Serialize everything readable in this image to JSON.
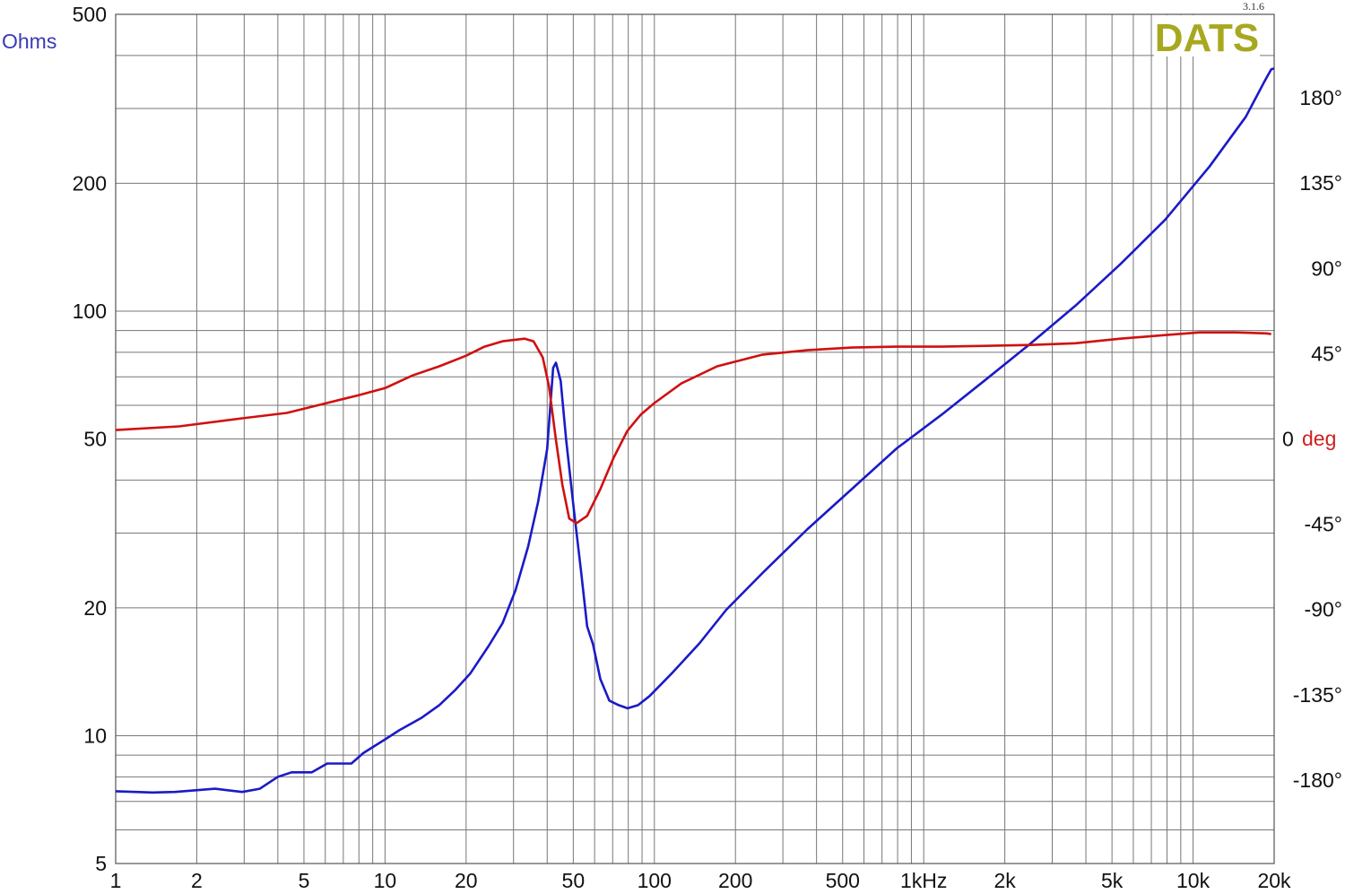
{
  "chart_data": {
    "type": "line",
    "title": "",
    "version": "3.1.6",
    "logo": "DATS",
    "x_scale": "log",
    "xlim": [
      1,
      20000
    ],
    "x_ticks": [
      {
        "value": 1,
        "label": "1"
      },
      {
        "value": 2,
        "label": "2"
      },
      {
        "value": 5,
        "label": "5"
      },
      {
        "value": 10,
        "label": "10"
      },
      {
        "value": 20,
        "label": "20"
      },
      {
        "value": 50,
        "label": "50"
      },
      {
        "value": 100,
        "label": "100"
      },
      {
        "value": 200,
        "label": "200"
      },
      {
        "value": 500,
        "label": "500"
      },
      {
        "value": 1000,
        "label": "1kHz"
      },
      {
        "value": 2000,
        "label": "2k"
      },
      {
        "value": 5000,
        "label": "5k"
      },
      {
        "value": 10000,
        "label": "10k"
      },
      {
        "value": 20000,
        "label": "20k"
      }
    ],
    "y_left": {
      "label": "Ohms",
      "scale": "log",
      "ylim": [
        5,
        500
      ],
      "ticks": [
        {
          "value": 500,
          "label": "500"
        },
        {
          "value": 200,
          "label": "200"
        },
        {
          "value": 100,
          "label": "100"
        },
        {
          "value": 50,
          "label": "50"
        },
        {
          "value": 20,
          "label": "20"
        },
        {
          "value": 10,
          "label": "10"
        },
        {
          "value": 5,
          "label": "5"
        }
      ]
    },
    "y_right": {
      "label": "deg",
      "scale": "linear",
      "ylim": [
        -224,
        224
      ],
      "ticks": [
        {
          "value": 180,
          "label": "180°"
        },
        {
          "value": 135,
          "label": "135°"
        },
        {
          "value": 90,
          "label": "90°"
        },
        {
          "value": 45,
          "label": "45°"
        },
        {
          "value": 0,
          "label": "0"
        },
        {
          "value": -45,
          "label": "-45°"
        },
        {
          "value": -90,
          "label": "-90°"
        },
        {
          "value": -135,
          "label": "-135°"
        },
        {
          "value": -180,
          "label": "-180°"
        }
      ]
    },
    "grid": true,
    "colors": {
      "impedance": "#1a1ac8",
      "phase": "#d01010",
      "grid": "#777777",
      "logo": "#a8a820",
      "ohms_label": "#3a3ab8",
      "deg_label": "#d02020"
    },
    "series": [
      {
        "axis": "left",
        "color": "#1a1ac8",
        "points": [
          [
            1,
            7.4
          ],
          [
            1.37,
            7.35
          ],
          [
            1.66,
            7.37
          ],
          [
            2.34,
            7.5
          ],
          [
            2.95,
            7.37
          ],
          [
            3.43,
            7.5
          ],
          [
            4.0,
            8.0
          ],
          [
            4.5,
            8.2
          ],
          [
            5.35,
            8.2
          ],
          [
            6.1,
            8.6
          ],
          [
            6.8,
            8.6
          ],
          [
            7.5,
            8.6
          ],
          [
            8.3,
            9.1
          ],
          [
            10,
            9.8
          ],
          [
            11.3,
            10.3
          ],
          [
            13.6,
            11
          ],
          [
            15.9,
            11.8
          ],
          [
            18.2,
            12.8
          ],
          [
            20.7,
            14
          ],
          [
            24.3,
            16.3
          ],
          [
            27.3,
            18.4
          ],
          [
            30.5,
            22
          ],
          [
            34,
            27.9
          ],
          [
            37,
            35.5
          ],
          [
            40,
            47.3
          ],
          [
            42.1,
            73.5
          ],
          [
            43.1,
            75.6
          ],
          [
            44.9,
            68.5
          ],
          [
            47,
            50
          ],
          [
            50.3,
            33.9
          ],
          [
            53.5,
            24.2
          ],
          [
            56.3,
            18.1
          ],
          [
            59.2,
            16.4
          ],
          [
            63,
            13.6
          ],
          [
            68,
            12.1
          ],
          [
            73.7,
            11.8
          ],
          [
            79.5,
            11.6
          ],
          [
            87,
            11.8
          ],
          [
            96,
            12.4
          ],
          [
            117,
            14.1
          ],
          [
            147,
            16.5
          ],
          [
            185,
            19.8
          ],
          [
            251,
            24.1
          ],
          [
            369,
            30.6
          ],
          [
            541,
            38.1
          ],
          [
            794,
            47.5
          ],
          [
            1164,
            57
          ],
          [
            1700,
            69
          ],
          [
            2500,
            84
          ],
          [
            3660,
            103
          ],
          [
            5370,
            129
          ],
          [
            7870,
            164
          ],
          [
            11500,
            219
          ],
          [
            15700,
            287
          ],
          [
            18300,
            345
          ],
          [
            19500,
            371
          ],
          [
            20000,
            373
          ]
        ]
      },
      {
        "axis": "right",
        "color": "#d01010",
        "points": [
          [
            1,
            4.7
          ],
          [
            1.72,
            6.6
          ],
          [
            2.95,
            10.9
          ],
          [
            4.32,
            13.7
          ],
          [
            5.87,
            18.4
          ],
          [
            7.98,
            23.1
          ],
          [
            10.05,
            26.9
          ],
          [
            12.65,
            33.5
          ],
          [
            15.9,
            38.3
          ],
          [
            20,
            43.9
          ],
          [
            23.4,
            48.7
          ],
          [
            27.3,
            51.5
          ],
          [
            33,
            52.9
          ],
          [
            35.6,
            51.5
          ],
          [
            38.5,
            43
          ],
          [
            40.6,
            27.9
          ],
          [
            43.1,
            -0.5
          ],
          [
            45.5,
            -24
          ],
          [
            48.3,
            -42
          ],
          [
            51.4,
            -44.4
          ],
          [
            56.3,
            -40.6
          ],
          [
            63,
            -26.5
          ],
          [
            70.6,
            -9.9
          ],
          [
            79.4,
            4.3
          ],
          [
            89,
            12.8
          ],
          [
            100,
            18.9
          ],
          [
            126,
            29.3
          ],
          [
            171,
            38.3
          ],
          [
            251,
            44.4
          ],
          [
            368,
            46.8
          ],
          [
            541,
            48.2
          ],
          [
            794,
            48.7
          ],
          [
            1164,
            48.7
          ],
          [
            1700,
            49.1
          ],
          [
            2500,
            49.6
          ],
          [
            3660,
            50.5
          ],
          [
            5370,
            52.9
          ],
          [
            7870,
            54.8
          ],
          [
            10600,
            56.2
          ],
          [
            14300,
            56.2
          ],
          [
            18800,
            55.7
          ],
          [
            19500,
            55.3
          ]
        ]
      }
    ]
  }
}
